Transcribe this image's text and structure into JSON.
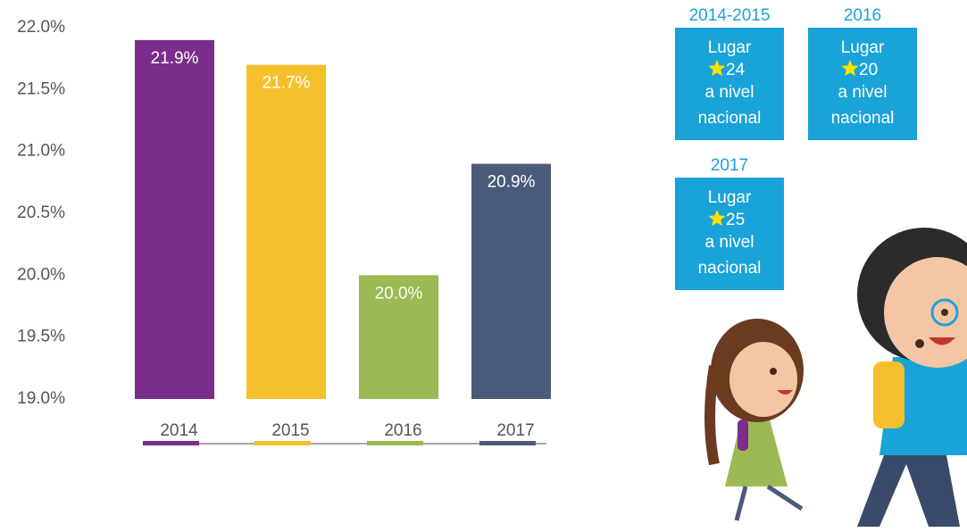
{
  "chart_data": {
    "type": "bar",
    "categories": [
      "2014",
      "2015",
      "2016",
      "2017"
    ],
    "values": [
      21.9,
      21.7,
      20.0,
      20.9
    ],
    "value_labels": [
      "21.9%",
      "21.7%",
      "20.0%",
      "20.9%"
    ],
    "colors": [
      "#7b2d8b",
      "#f4c02c",
      "#9bba53",
      "#4a5b7a"
    ],
    "ylim": [
      19.0,
      22.0
    ],
    "yticks": [
      {
        "value": 19.0,
        "label": "19.0%"
      },
      {
        "value": 19.5,
        "label": "19.5%"
      },
      {
        "value": 20.0,
        "label": "20.0%"
      },
      {
        "value": 20.5,
        "label": "20.5%"
      },
      {
        "value": 21.0,
        "label": "21.0%"
      },
      {
        "value": 21.5,
        "label": "21.5%"
      },
      {
        "value": 22.0,
        "label": "22.0%"
      }
    ],
    "grid": false
  },
  "badges": [
    {
      "period": "2014-2015",
      "line1": "Lugar",
      "rank": "24",
      "line2": "a nivel",
      "line3": "nacional"
    },
    {
      "period": "2016",
      "line1": "Lugar",
      "rank": "20",
      "line2": "a nivel",
      "line3": "nacional"
    },
    {
      "period": "2017",
      "line1": "Lugar",
      "rank": "25",
      "line2": "a nivel",
      "line3": "nacional"
    }
  ]
}
